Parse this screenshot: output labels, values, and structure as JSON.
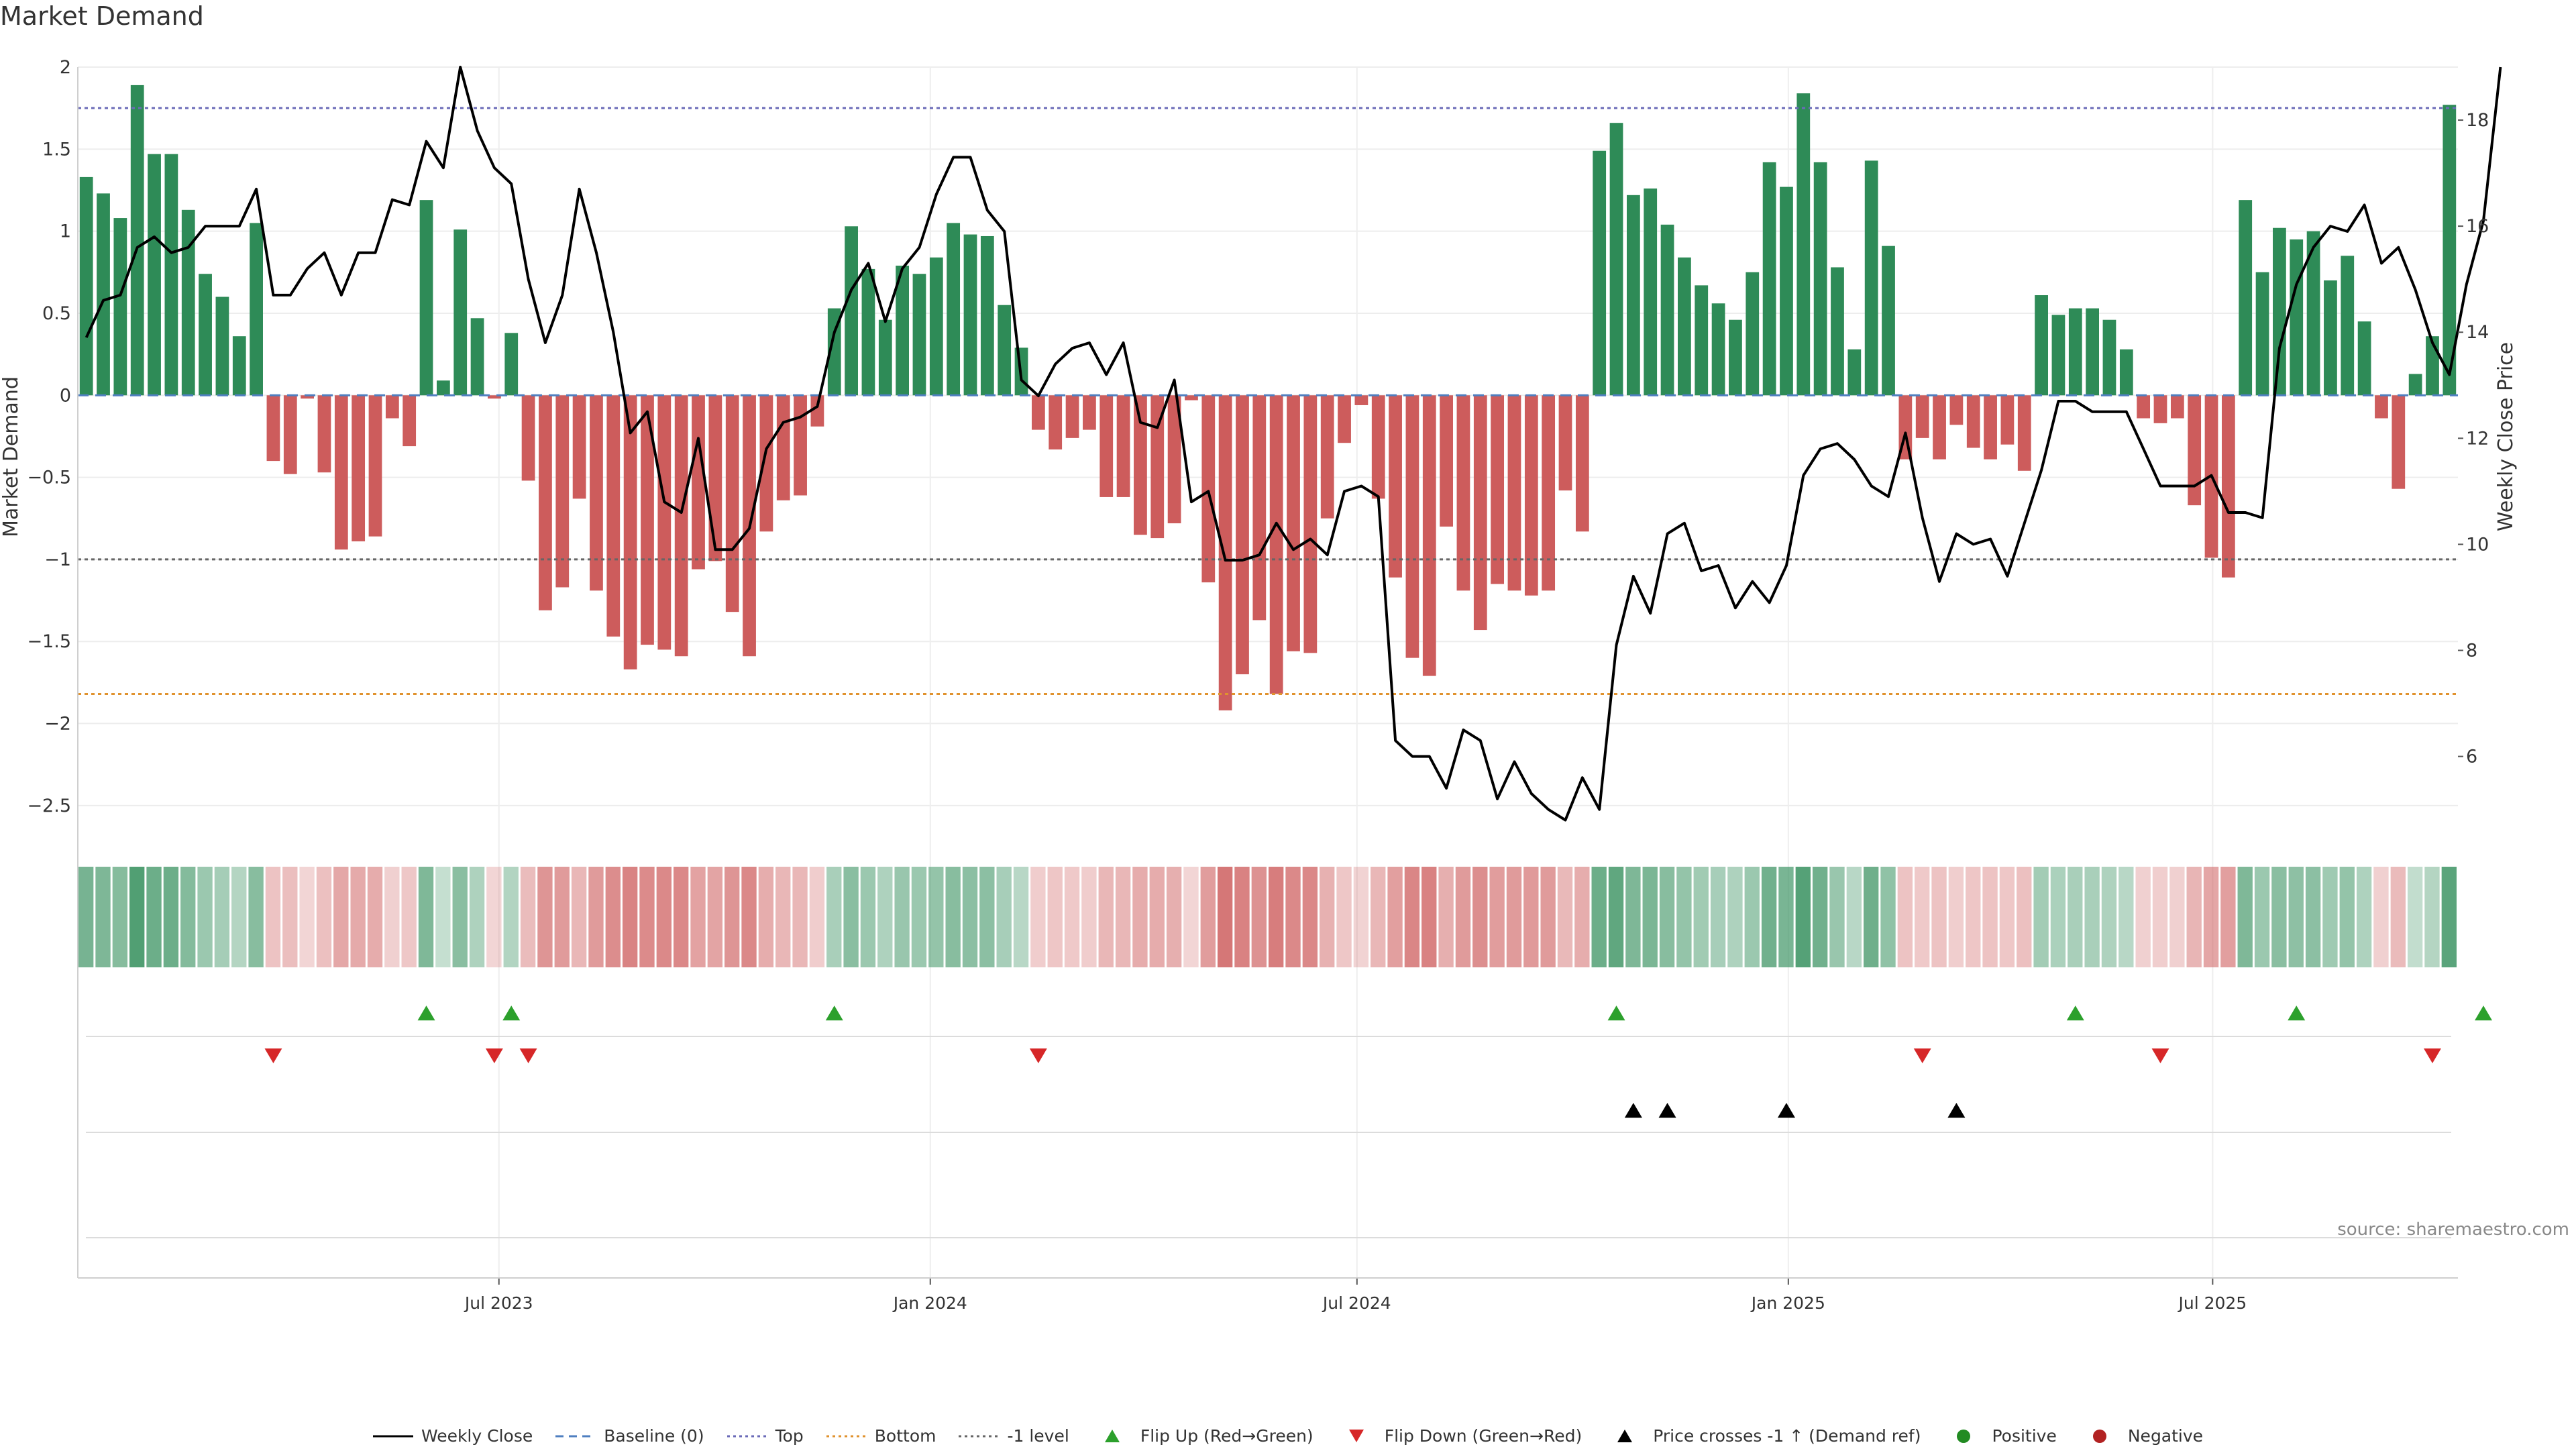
{
  "chart_data": {
    "type": "bar",
    "title": "Market Demand",
    "ylabel": "Market Demand",
    "y2label": "Weekly Close Price",
    "ylim": [
      -2.75,
      2.0
    ],
    "y2lim": [
      4.3,
      19.0
    ],
    "yticks": [
      "2",
      "1.5",
      "1",
      "0.5",
      "0",
      "−0.5",
      "−1",
      "−1.5",
      "−2",
      "−2.5"
    ],
    "ytick_values": [
      2,
      1.5,
      1,
      0.5,
      0,
      -0.5,
      -1,
      -1.5,
      -2,
      -2.5
    ],
    "y2ticks": [
      "18",
      "16",
      "14",
      "12",
      "10",
      "8",
      "6"
    ],
    "y2tick_values": [
      18,
      16,
      14,
      12,
      10,
      8,
      6
    ],
    "x_start": "2023-01-06",
    "x_end": "2025-10-10",
    "xticks": [
      {
        "date": "2023-07-01",
        "label": "Jul 2023"
      },
      {
        "date": "2024-01-01",
        "label": "Jan 2024"
      },
      {
        "date": "2024-07-01",
        "label": "Jul 2024"
      },
      {
        "date": "2025-01-01",
        "label": "Jan 2025"
      },
      {
        "date": "2025-07-01",
        "label": "Jul 2025"
      }
    ],
    "reference_lines": {
      "top": 1.75,
      "bottom": -1.82,
      "minus_one": -1.0,
      "baseline": 0
    },
    "demand": [
      1.33,
      1.23,
      1.08,
      1.89,
      1.47,
      1.47,
      1.13,
      0.74,
      0.6,
      0.36,
      1.05,
      -0.4,
      -0.48,
      -0.02,
      -0.47,
      -0.94,
      -0.89,
      -0.86,
      -0.14,
      -0.31,
      1.19,
      0.09,
      1.01,
      0.47,
      -0.02,
      0.38,
      -0.52,
      -1.31,
      -1.17,
      -0.63,
      -1.19,
      -1.47,
      -1.67,
      -1.52,
      -1.55,
      -1.59,
      -1.06,
      -1.01,
      -1.32,
      -1.59,
      -0.83,
      -0.64,
      -0.61,
      -0.19,
      0.53,
      1.03,
      0.77,
      0.46,
      0.79,
      0.74,
      0.84,
      1.05,
      0.98,
      0.97,
      0.55,
      0.29,
      -0.21,
      -0.33,
      -0.26,
      -0.21,
      -0.62,
      -0.62,
      -0.85,
      -0.87,
      -0.78,
      -0.03,
      -1.14,
      -1.92,
      -1.7,
      -1.37,
      -1.82,
      -1.56,
      -1.57,
      -0.75,
      -0.29,
      -0.06,
      -0.63,
      -1.11,
      -1.6,
      -1.71,
      -0.8,
      -1.19,
      -1.43,
      -1.15,
      -1.19,
      -1.22,
      -1.19,
      -0.58,
      -0.83,
      1.49,
      1.66,
      1.22,
      1.26,
      1.04,
      0.84,
      0.67,
      0.56,
      0.46,
      0.75,
      1.42,
      1.27,
      1.84,
      1.42,
      0.78,
      0.28,
      1.43,
      0.91,
      -0.39,
      -0.26,
      -0.39,
      -0.18,
      -0.32,
      -0.39,
      -0.3,
      -0.46,
      0.61,
      0.49,
      0.53,
      0.53,
      0.46,
      0.28,
      -0.14,
      -0.17,
      -0.14,
      -0.67,
      -0.99,
      -1.11,
      1.19,
      0.75,
      1.02,
      0.95,
      1.0,
      0.7,
      0.85,
      0.45,
      -0.14,
      -0.57,
      0.13,
      0.36,
      1.77
    ],
    "close": [
      13.9,
      14.6,
      14.7,
      15.6,
      15.8,
      15.5,
      15.6,
      16.0,
      16.0,
      16.0,
      16.7,
      14.7,
      14.7,
      15.2,
      15.5,
      14.7,
      15.5,
      15.5,
      16.5,
      16.4,
      17.6,
      17.1,
      19.0,
      17.8,
      17.1,
      16.8,
      15.0,
      13.8,
      14.7,
      16.7,
      15.5,
      14.0,
      12.1,
      12.5,
      10.8,
      10.6,
      12.0,
      9.9,
      9.9,
      10.3,
      11.8,
      12.3,
      12.4,
      12.6,
      14.0,
      14.8,
      15.3,
      14.2,
      15.2,
      15.6,
      16.6,
      17.3,
      17.3,
      16.3,
      15.9,
      13.1,
      12.8,
      13.4,
      13.7,
      13.8,
      13.2,
      13.8,
      12.3,
      12.2,
      13.1,
      10.8,
      11.0,
      9.7,
      9.7,
      9.8,
      10.4,
      9.9,
      10.1,
      9.8,
      11.0,
      11.1,
      10.9,
      6.3,
      6.0,
      6.0,
      5.4,
      6.5,
      6.3,
      5.2,
      5.9,
      5.3,
      5.0,
      4.8,
      5.6,
      5.0,
      8.1,
      9.4,
      8.7,
      10.2,
      10.4,
      9.5,
      9.6,
      8.8,
      9.3,
      8.9,
      9.6,
      11.3,
      11.8,
      11.9,
      11.6,
      11.1,
      10.9,
      12.1,
      10.5,
      9.3,
      10.2,
      10.0,
      10.1,
      9.4,
      10.4,
      11.4,
      12.7,
      12.7,
      12.5,
      12.5,
      12.5,
      11.8,
      11.1,
      11.1,
      11.1,
      11.3,
      10.6,
      10.6,
      10.5,
      13.7,
      14.9,
      15.6,
      16.0,
      15.9,
      16.4,
      15.3,
      15.6,
      14.8,
      13.8,
      13.2,
      14.9,
      16.1,
      19.0
    ],
    "flip_up": [
      20,
      25,
      44,
      90,
      117,
      130,
      141
    ],
    "flip_down": [
      11,
      24,
      26,
      56,
      108,
      122,
      138
    ],
    "price_cross": [
      91,
      93,
      100,
      110
    ],
    "colors": {
      "positive": "#2e8b57",
      "negative": "#cd5c5c",
      "close_line": "#000000",
      "baseline": "#4f7fc0",
      "top": "#6b6bb8",
      "bottom": "#e0922e",
      "minus_one": "#666666",
      "flip_up": "#2ca02c",
      "flip_down": "#d62728",
      "price_cross": "#000000",
      "positive_dot": "#228b22",
      "negative_dot": "#b22222"
    },
    "legend": [
      {
        "type": "line-solid",
        "color": "#000000",
        "label": "Weekly Close"
      },
      {
        "type": "line-dashed",
        "color": "#4f7fc0",
        "label": "Baseline (0)"
      },
      {
        "type": "line-dotted",
        "color": "#6b6bb8",
        "label": "Top"
      },
      {
        "type": "line-dotted",
        "color": "#e0922e",
        "label": "Bottom"
      },
      {
        "type": "line-dotted",
        "color": "#666666",
        "label": "-1 level"
      },
      {
        "type": "tri-up",
        "color": "#2ca02c",
        "label": "Flip Up (Red→Green)"
      },
      {
        "type": "tri-down",
        "color": "#d62728",
        "label": "Flip Down (Green→Red)"
      },
      {
        "type": "tri-up",
        "color": "#000000",
        "label": "Price crosses -1 ↑ (Demand ref)"
      },
      {
        "type": "dot",
        "color": "#228b22",
        "label": "Positive"
      },
      {
        "type": "dot",
        "color": "#b22222",
        "label": "Negative"
      }
    ]
  },
  "source_note": "source: sharemaestro.com"
}
